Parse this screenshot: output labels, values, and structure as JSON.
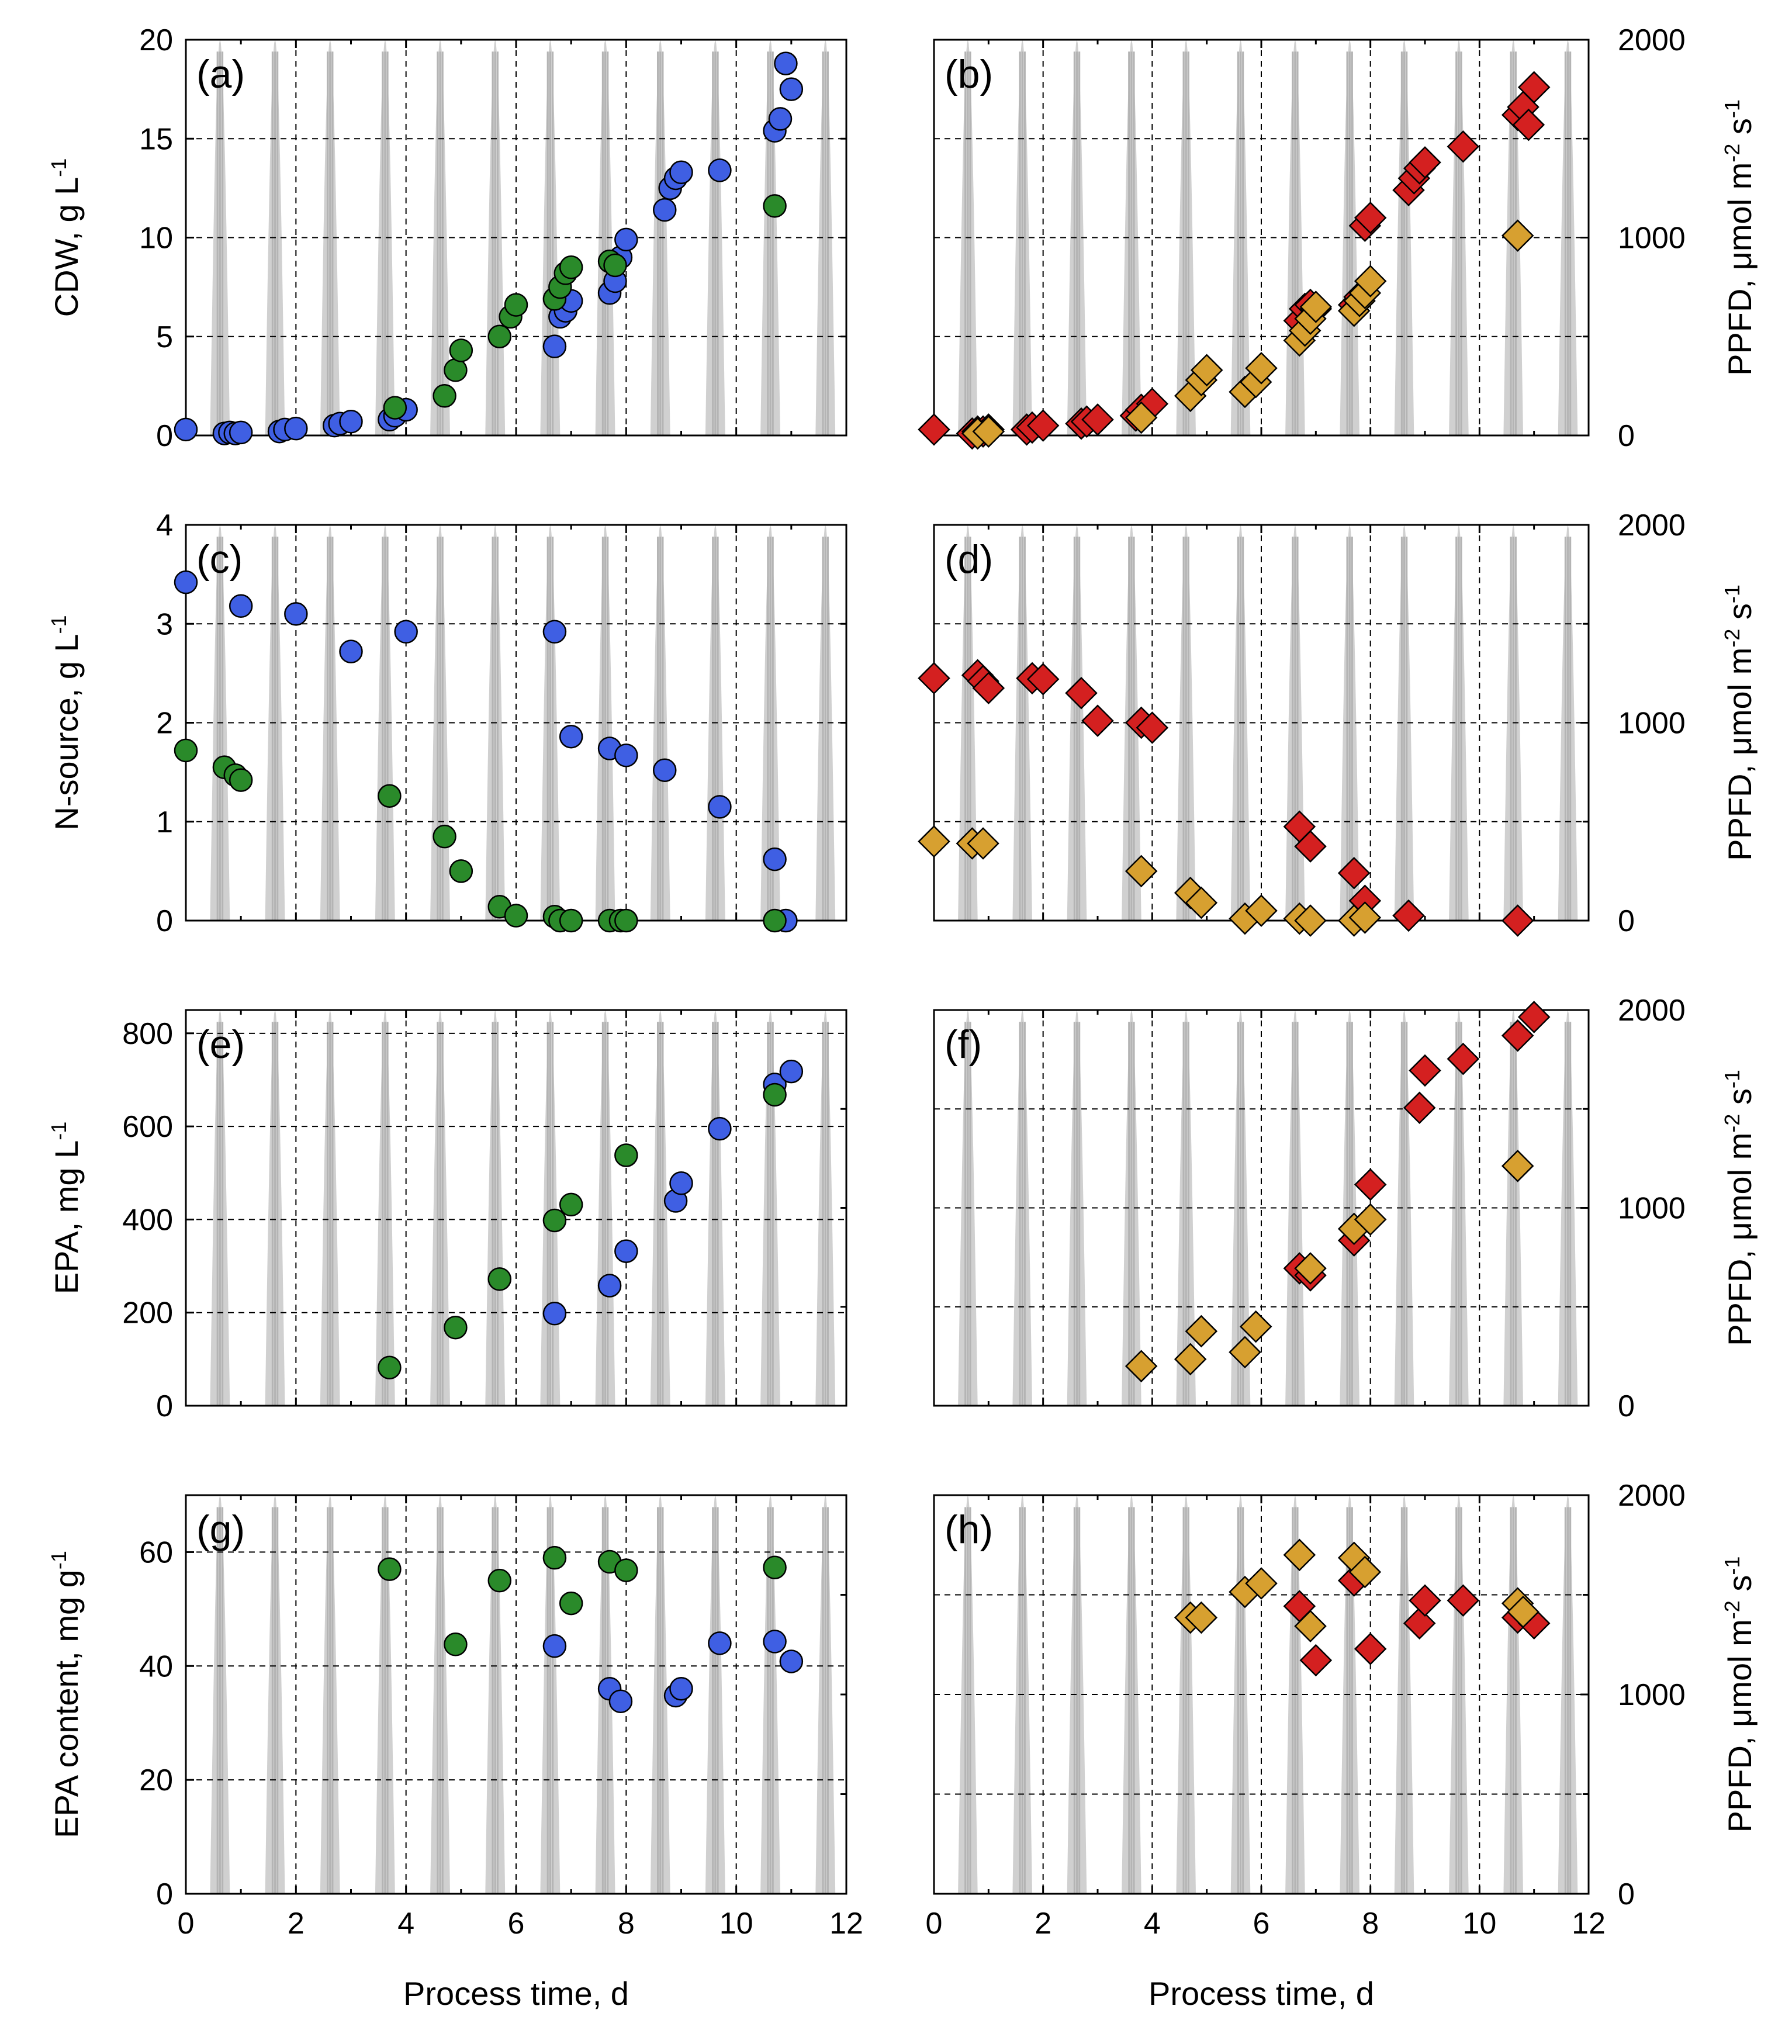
{
  "chart_data": {
    "type": "scatter",
    "colors": {
      "blue_circle": "#3f5fe3",
      "green_circle": "#2a8a2a",
      "red_diamond": "#d42020",
      "gold_diamond": "#d7a030",
      "light_band": "#c8c8c8"
    },
    "x_axis": {
      "label": "Process time, d",
      "ticks": [
        "0",
        "2",
        "4",
        "6",
        "8",
        "10",
        "12"
      ],
      "range": [
        0,
        12
      ]
    },
    "right_axis": {
      "label": "PPFD, μmol m-2 s-1",
      "label_main": "PPFD, μmol m",
      "label_sup1": "-2",
      "label_mid": " s",
      "label_sup2": "-1",
      "ticks": [
        "0",
        "1000",
        "2000"
      ],
      "range": [
        0,
        2000
      ]
    },
    "light_profile": {
      "description_units": "days",
      "day_starts": [
        0,
        1,
        2,
        3,
        4,
        5,
        6,
        7,
        8,
        9,
        10,
        11
      ],
      "peak_offset": 0.62,
      "half_width": 0.18,
      "peak_ppfd": 2000
    },
    "panels": [
      {
        "id": "a",
        "label": "(a)",
        "ylabel": "CDW, g L-1",
        "ylabel_main": "CDW, g L",
        "ylabel_sup": "-1",
        "ylim": [
          0,
          20
        ],
        "yticks": [
          "0",
          "5",
          "10",
          "15",
          "20"
        ],
        "show_left_ticks": true,
        "series": [
          {
            "name": "blue",
            "marker": "circle",
            "color": "#3f5fe3",
            "x": [
              0,
              0.7,
              0.8,
              0.9,
              1.0,
              1.7,
              1.8,
              2.0,
              2.7,
              2.8,
              3.0,
              3.7,
              3.8,
              4.0,
              6.7,
              6.8,
              6.9,
              7.0,
              7.7,
              7.8,
              7.9,
              8.0,
              8.7,
              8.8,
              8.9,
              9.0,
              9.7,
              10.7,
              10.8,
              10.9,
              11.0
            ],
            "y": [
              0.3,
              0.1,
              0.15,
              0.1,
              0.15,
              0.2,
              0.3,
              0.35,
              0.5,
              0.6,
              0.7,
              0.8,
              1.0,
              1.3,
              4.5,
              6.0,
              6.3,
              6.8,
              7.2,
              7.8,
              9.0,
              9.9,
              11.4,
              12.5,
              13.0,
              13.3,
              13.4,
              15.4,
              16.0,
              18.8,
              17.5
            ]
          },
          {
            "name": "green",
            "marker": "circle",
            "color": "#2a8a2a",
            "x": [
              3.8,
              4.7,
              4.9,
              5.0,
              5.7,
              5.9,
              6.0,
              6.7,
              6.8,
              6.9,
              7.0,
              7.7,
              7.8,
              10.7
            ],
            "y": [
              1.4,
              2.0,
              3.3,
              4.3,
              5.0,
              6.0,
              6.6,
              6.9,
              7.5,
              8.2,
              8.5,
              8.8,
              8.6,
              11.6
            ]
          }
        ]
      },
      {
        "id": "b",
        "label": "(b)",
        "ylabel": "PPFD, μmol m-2 s-1",
        "ylim": [
          0,
          20
        ],
        "yticks": [],
        "show_left_ticks": false,
        "right_ticks": true,
        "series": [
          {
            "name": "red",
            "marker": "diamond",
            "color": "#d42020",
            "x": [
              0,
              0.7,
              0.8,
              0.9,
              1.0,
              1.7,
              1.8,
              2.0,
              2.7,
              2.8,
              3.0,
              3.7,
              3.8,
              4.0,
              6.7,
              6.8,
              6.9,
              7.0,
              7.7,
              7.8,
              7.9,
              8.0,
              8.7,
              8.8,
              8.9,
              9.0,
              9.7,
              10.7,
              10.8,
              10.9,
              11.0
            ],
            "y": [
              0.3,
              0.1,
              0.2,
              0.2,
              0.3,
              0.3,
              0.4,
              0.5,
              0.6,
              0.7,
              0.8,
              1.0,
              1.3,
              1.6,
              5.8,
              6.4,
              6.6,
              6.4,
              6.6,
              7.0,
              10.6,
              11.0,
              12.4,
              13.0,
              13.5,
              13.8,
              14.6,
              16.2,
              16.6,
              15.7,
              17.6
            ]
          },
          {
            "name": "gold",
            "marker": "diamond",
            "color": "#d7a030",
            "x": [
              0.8,
              1.0,
              3.8,
              4.7,
              4.9,
              5.0,
              5.7,
              5.9,
              6.0,
              6.7,
              6.8,
              6.9,
              7.0,
              7.7,
              7.8,
              7.9,
              8.0,
              10.7
            ],
            "y": [
              0.1,
              0.2,
              0.9,
              2.0,
              2.8,
              3.3,
              2.2,
              2.7,
              3.4,
              4.8,
              5.3,
              5.9,
              6.5,
              6.3,
              6.8,
              7.2,
              7.8,
              10.1
            ]
          }
        ]
      },
      {
        "id": "c",
        "label": "(c)",
        "ylabel": "N-source, g L-1",
        "ylabel_main": "N-source, g L",
        "ylabel_sup": "-1",
        "ylim": [
          0,
          4
        ],
        "yticks": [
          "0",
          "1",
          "2",
          "3",
          "4"
        ],
        "show_left_ticks": true,
        "series": [
          {
            "name": "blue",
            "marker": "circle",
            "color": "#3f5fe3",
            "x": [
              0,
              1.0,
              2.0,
              3.0,
              4.0,
              6.7,
              7.0,
              7.7,
              8.0,
              8.7,
              9.7,
              10.7,
              10.9
            ],
            "y": [
              3.42,
              3.18,
              3.1,
              2.72,
              2.92,
              2.92,
              1.86,
              1.74,
              1.67,
              1.52,
              1.15,
              0.62,
              0.0
            ]
          },
          {
            "name": "green",
            "marker": "circle",
            "color": "#2a8a2a",
            "x": [
              0,
              0.7,
              0.9,
              1.0,
              3.7,
              4.7,
              5.0,
              5.7,
              6.0,
              6.7,
              6.8,
              7.0,
              7.7,
              7.9,
              8.0,
              10.7
            ],
            "y": [
              1.72,
              1.55,
              1.47,
              1.42,
              1.26,
              0.85,
              0.5,
              0.14,
              0.05,
              0.04,
              0.0,
              0.0,
              0.0,
              0.0,
              0.0,
              0.0
            ]
          }
        ]
      },
      {
        "id": "d",
        "label": "(d)",
        "ylabel": "PPFD, μmol m-2 s-1",
        "ylim": [
          0,
          4
        ],
        "yticks": [],
        "show_left_ticks": false,
        "right_ticks": true,
        "series": [
          {
            "name": "red",
            "marker": "diamond",
            "color": "#d42020",
            "x": [
              0,
              0.8,
              0.9,
              1.0,
              1.8,
              2.0,
              2.7,
              3.0,
              3.8,
              4.0,
              6.7,
              6.9,
              7.7,
              7.9,
              8.7,
              10.7
            ],
            "y": [
              2.45,
              2.48,
              2.42,
              2.35,
              2.45,
              2.44,
              2.3,
              2.02,
              2.0,
              1.95,
              0.95,
              0.75,
              0.48,
              0.2,
              0.05,
              0.0
            ]
          },
          {
            "name": "gold",
            "marker": "diamond",
            "color": "#d7a030",
            "x": [
              0,
              0.7,
              0.9,
              3.8,
              4.7,
              4.9,
              5.7,
              6.0,
              6.7,
              6.9,
              7.7,
              7.9
            ],
            "y": [
              0.8,
              0.78,
              0.78,
              0.5,
              0.28,
              0.18,
              0.02,
              0.1,
              0.02,
              0.0,
              0.0,
              0.03
            ]
          }
        ]
      },
      {
        "id": "e",
        "label": "(e)",
        "ylabel": "EPA, mg L-1",
        "ylabel_main": "EPA, mg L",
        "ylabel_sup": "-1",
        "ylim": [
          0,
          850
        ],
        "yticks": [
          "0",
          "200",
          "400",
          "600",
          "800"
        ],
        "ytick_values": [
          0,
          200,
          400,
          600,
          800
        ],
        "show_left_ticks": true,
        "series": [
          {
            "name": "blue",
            "marker": "circle",
            "color": "#3f5fe3",
            "x": [
              6.7,
              7.7,
              8.0,
              8.9,
              9.0,
              9.7,
              10.7,
              11.0
            ],
            "y": [
              198,
              258,
              332,
              440,
              478,
              595,
              690,
              718
            ]
          },
          {
            "name": "green",
            "marker": "circle",
            "color": "#2a8a2a",
            "x": [
              3.7,
              4.9,
              5.7,
              6.7,
              7.0,
              8.0,
              10.7
            ],
            "y": [
              82,
              168,
              272,
              398,
              432,
              538,
              668
            ]
          }
        ]
      },
      {
        "id": "f",
        "label": "(f)",
        "ylabel": "PPFD, μmol m-2 s-1",
        "ylim": [
          0,
          850
        ],
        "yticks": [],
        "show_left_ticks": false,
        "right_ticks": true,
        "series": [
          {
            "name": "red",
            "marker": "diamond",
            "color": "#d42020",
            "x": [
              6.7,
              6.9,
              7.7,
              8.0,
              8.9,
              9.0,
              9.7,
              10.7,
              11.0
            ],
            "y": [
              295,
              280,
              355,
              475,
              640,
              720,
              745,
              795,
              835
            ]
          },
          {
            "name": "gold",
            "marker": "diamond",
            "color": "#d7a030",
            "x": [
              3.8,
              4.7,
              4.9,
              5.7,
              5.9,
              6.9,
              7.7,
              8.0,
              10.7
            ],
            "y": [
              85,
              100,
              160,
              115,
              170,
              295,
              380,
              400,
              515
            ]
          }
        ]
      },
      {
        "id": "g",
        "label": "(g)",
        "ylabel": "EPA content, mg g-1",
        "ylabel_main": "EPA content, mg g",
        "ylabel_sup": "-1",
        "ylim": [
          0,
          70
        ],
        "yticks": [
          "0",
          "20",
          "40",
          "60"
        ],
        "ytick_values": [
          0,
          20,
          40,
          60
        ],
        "show_left_ticks": true,
        "series": [
          {
            "name": "blue",
            "marker": "circle",
            "color": "#3f5fe3",
            "x": [
              6.7,
              7.7,
              7.9,
              8.9,
              9.0,
              9.7,
              10.7,
              11.0
            ],
            "y": [
              43.5,
              36.0,
              33.8,
              34.8,
              36.0,
              44.0,
              44.3,
              40.8
            ]
          },
          {
            "name": "green",
            "marker": "circle",
            "color": "#2a8a2a",
            "x": [
              3.7,
              4.9,
              5.7,
              6.7,
              7.0,
              7.7,
              8.0,
              10.7
            ],
            "y": [
              57.0,
              43.8,
              55.0,
              59.0,
              51.0,
              58.3,
              56.8,
              57.3
            ]
          }
        ]
      },
      {
        "id": "h",
        "label": "(h)",
        "ylabel": "PPFD, μmol m-2 s-1",
        "ylim": [
          0,
          70
        ],
        "yticks": [],
        "show_left_ticks": false,
        "right_ticks": true,
        "series": [
          {
            "name": "red",
            "marker": "diamond",
            "color": "#d42020",
            "x": [
              6.7,
              7.0,
              7.7,
              8.0,
              8.9,
              9.0,
              9.7,
              10.7,
              11.0
            ],
            "y": [
              50.5,
              41.0,
              55.0,
              43.0,
              47.5,
              51.5,
              51.5,
              48.5,
              47.5
            ]
          },
          {
            "name": "gold",
            "marker": "diamond",
            "color": "#d7a030",
            "x": [
              4.7,
              4.9,
              5.7,
              6.0,
              6.7,
              6.9,
              7.7,
              7.9,
              10.7,
              10.8
            ],
            "y": [
              48.5,
              48.5,
              53.0,
              54.5,
              59.5,
              47.0,
              59.0,
              56.5,
              51.0,
              49.5
            ]
          }
        ]
      }
    ]
  }
}
